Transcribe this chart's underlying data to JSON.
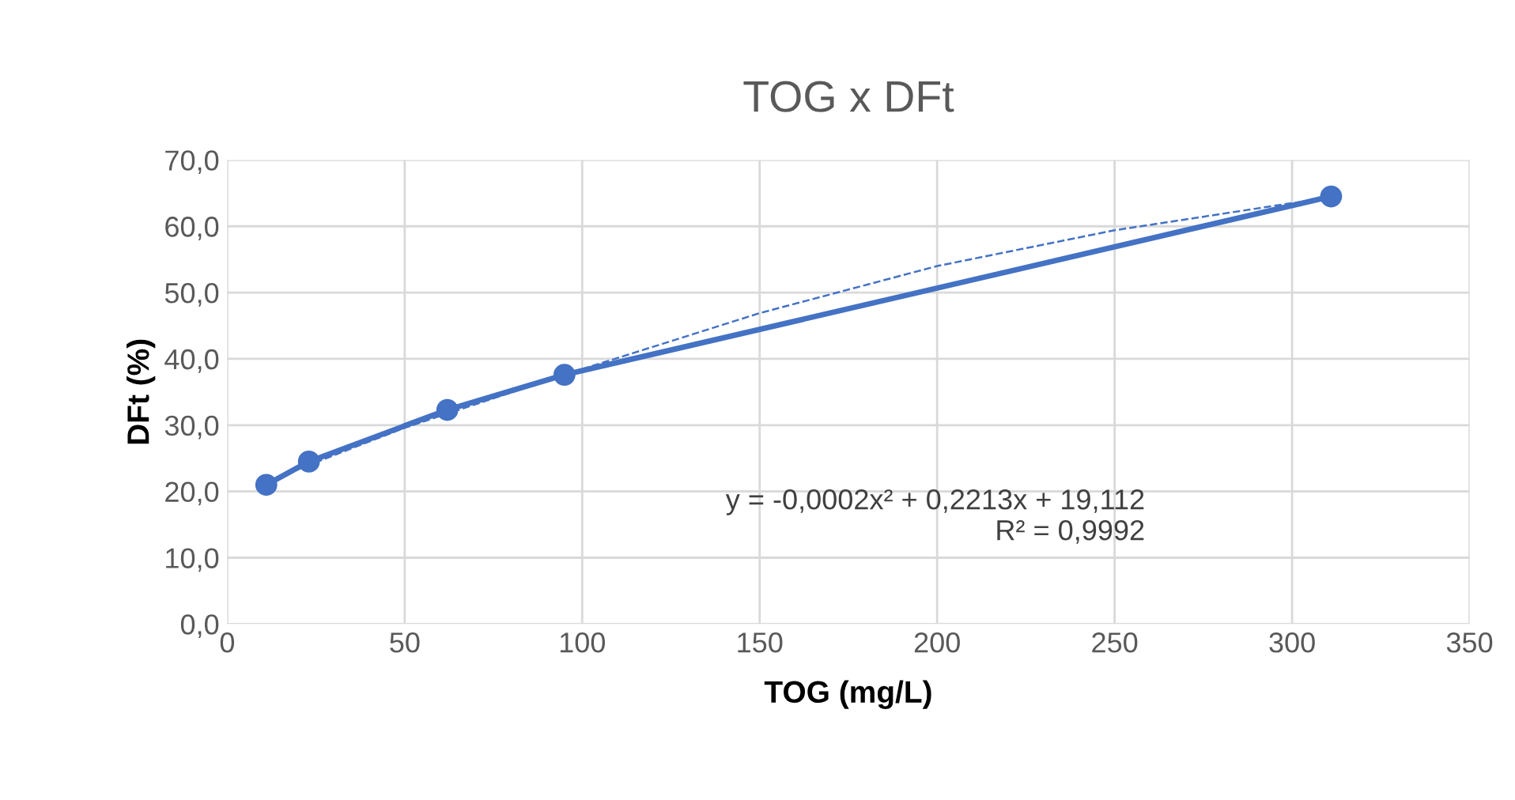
{
  "chart_data": {
    "type": "line",
    "title": "TOG x DFt",
    "xlabel": "TOG (mg/L)",
    "ylabel": "DFt (%)",
    "xlim": [
      0,
      350
    ],
    "xticks": [
      0,
      50,
      100,
      150,
      200,
      250,
      300,
      350
    ],
    "ylim": [
      0,
      70
    ],
    "yticks": [
      {
        "value": 0,
        "label": "0,0"
      },
      {
        "value": 10,
        "label": "10,0"
      },
      {
        "value": 20,
        "label": "20,0"
      },
      {
        "value": 30,
        "label": "30,0"
      },
      {
        "value": 40,
        "label": "40,0"
      },
      {
        "value": 50,
        "label": "50,0"
      },
      {
        "value": 60,
        "label": "60,0"
      },
      {
        "value": 70,
        "label": "70,0"
      }
    ],
    "grid": true,
    "marker": "circle",
    "line_style": "solid",
    "series": [
      {
        "color": "#4472c4",
        "x": [
          11,
          23,
          62,
          95,
          311
        ],
        "values": [
          21.0,
          24.5,
          32.3,
          37.6,
          64.5
        ]
      },
      {
        "color": "#4472c4",
        "line_style": "dashed",
        "marker": "none",
        "x": [
          11,
          50,
          95,
          150,
          200,
          250,
          300,
          311
        ],
        "values": [
          21.5,
          29.6,
          37.6,
          46.9,
          54.0,
          59.4,
          63.5,
          64.3
        ]
      }
    ],
    "annotations": [
      "y = -0,0002x² + 0,2213x + 19,112\nR² = 0,9992"
    ]
  }
}
